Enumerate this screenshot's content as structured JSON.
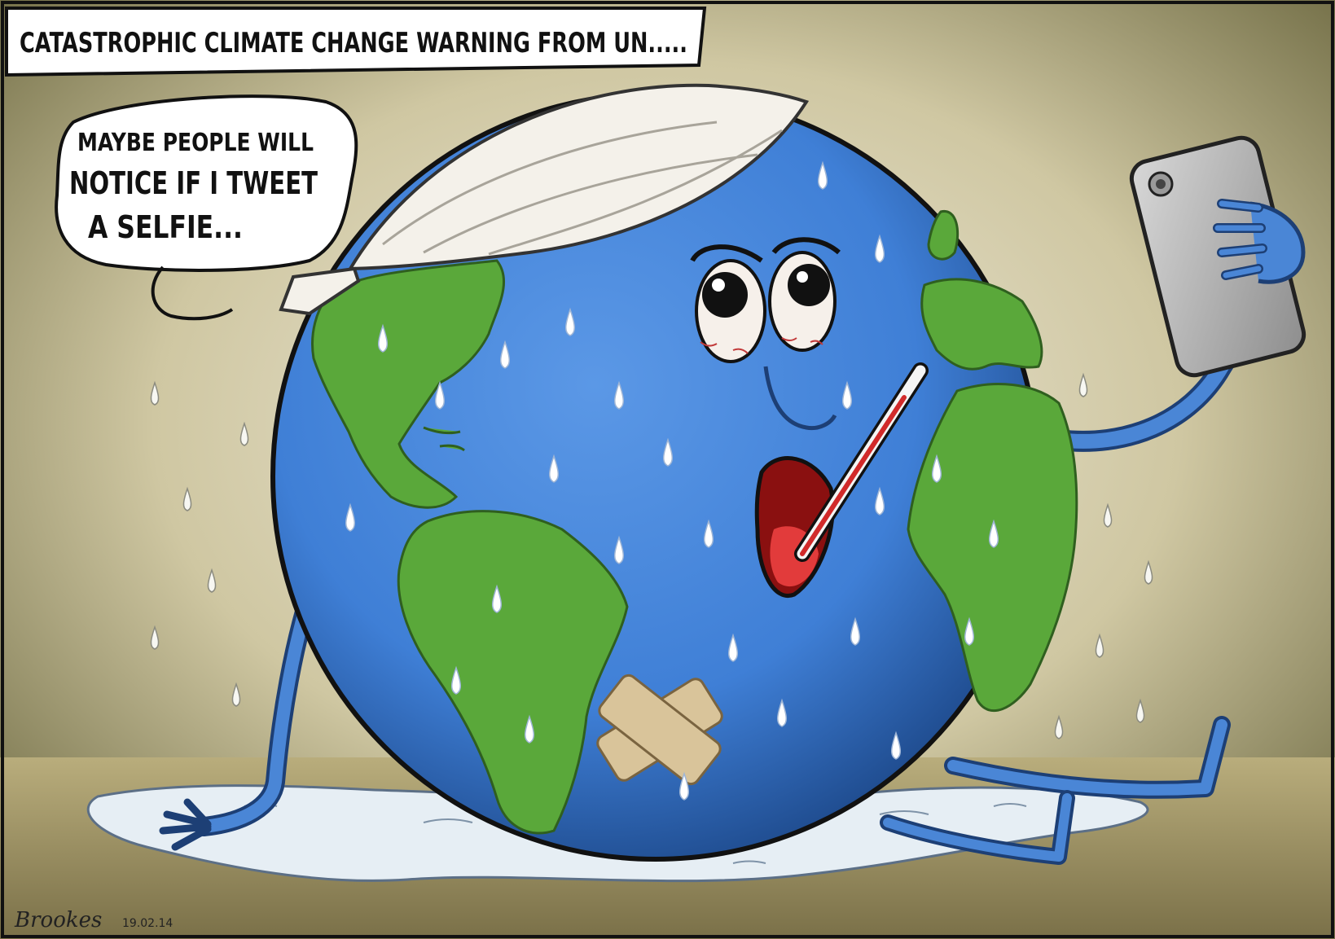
{
  "caption": "CATASTROPHIC CLIMATE CHANGE WARNING FROM UN.....",
  "speech": {
    "line1": "MAYBE PEOPLE WILL",
    "line2": "NOTICE IF I TWEET",
    "line3": "A SELFIE..."
  },
  "signature": "Brookes",
  "signature_date": "19.02.14",
  "colors": {
    "background": "#d9d2b8",
    "background_dark": "#6e6a42",
    "ocean": "#3f7fd6",
    "ocean_dark": "#23559e",
    "land": "#5aa83a",
    "land_dark": "#3c7d25",
    "thermometer_red": "#d12a2a",
    "phone": "#b8b8b8"
  },
  "icons": {
    "character": "earth-globe",
    "head_bandage": "bandage",
    "adhesive_plaster": "sticking-plaster",
    "device": "smartphone",
    "thermometer": "thermometer"
  }
}
